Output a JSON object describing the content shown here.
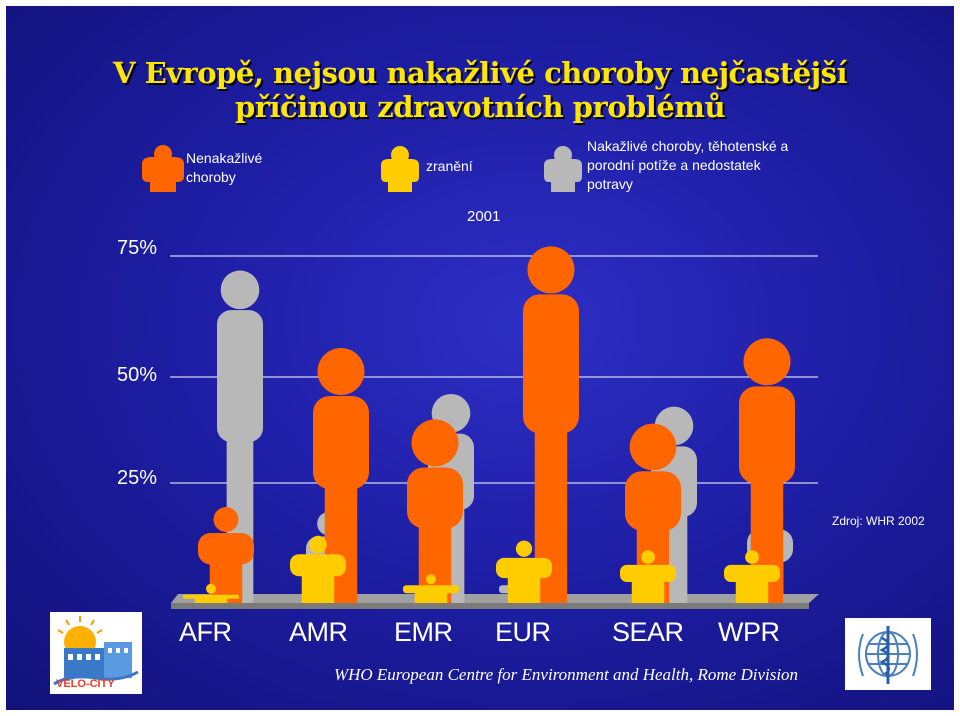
{
  "title_line1": "V Evropě, nejsou nakažlivé choroby nejčastější",
  "title_line2": "příčinou zdravotních problémů",
  "legend": [
    {
      "label_line1": "Nenakažlivé",
      "label_line2": "choroby",
      "color": "#ff6600"
    },
    {
      "label_line1": "zranění",
      "color": "#ffcc00"
    },
    {
      "label_line1": "Nakažlivé choroby, těhotenské a",
      "label_line2": "porodní potíže a nedostatek",
      "label_line3": "potravy",
      "color": "#b8b8b8"
    }
  ],
  "year_label": "2001",
  "source": "Zdroj: WHR 2002",
  "footer": "WHO European Centre for Environment and Health, Rome Division",
  "logos": {
    "left_text": "VELO-CITY"
  },
  "colors": {
    "noncommunicable": "#ff6600",
    "injuries": "#ffcc00",
    "communicable": "#b8b8b8",
    "background": "#1e1ea6",
    "title": "#ffe600"
  },
  "chart_data": {
    "type": "bar",
    "title": "V Evropě, nejsou nakažlivé choroby nejčastější příčinou zdravotních problémů",
    "subtitle": "2001",
    "categories": [
      "AFR",
      "AMR",
      "EMR",
      "EUR",
      "SEAR",
      "WPR"
    ],
    "series": [
      {
        "name": "Nenakažlivé choroby",
        "values": [
          20,
          56,
          40,
          77,
          39,
          58
        ]
      },
      {
        "name": "zranění",
        "values": [
          4,
          14,
          6,
          13,
          11,
          11
        ]
      },
      {
        "name": "Nakažlivé choroby, těhotenské a porodní potíže a nedostatek potravy",
        "values": [
          72,
          19,
          46,
          6,
          43,
          21
        ]
      }
    ],
    "yticks": [
      "25%",
      "50%",
      "75%"
    ],
    "ylim": [
      0,
      80
    ],
    "legend_position": "top",
    "grid": true
  }
}
